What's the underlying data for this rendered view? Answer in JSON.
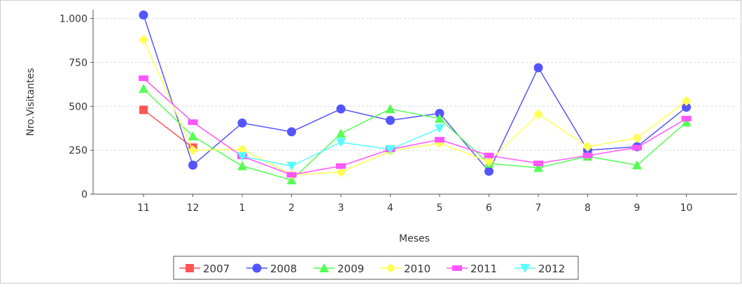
{
  "chart_data": {
    "type": "line",
    "xlabel": "Meses",
    "ylabel": "Nro.Visitantes",
    "categories": [
      "11",
      "12",
      "1",
      "2",
      "3",
      "4",
      "5",
      "6",
      "7",
      "8",
      "9",
      "10"
    ],
    "ylim": [
      0,
      1050
    ],
    "yticks": [
      0,
      250,
      500,
      750,
      1000
    ],
    "ytick_labels": [
      "0",
      "250",
      "500",
      "750",
      "1.000"
    ],
    "grid": "horizontal-dashed",
    "legend_position": "bottom",
    "series": [
      {
        "name": "2007",
        "color": "#ff5555",
        "marker": "square",
        "values": [
          480,
          265,
          null,
          null,
          null,
          null,
          null,
          null,
          null,
          null,
          null,
          null
        ]
      },
      {
        "name": "2008",
        "color": "#5555ff",
        "marker": "circle",
        "values": [
          1020,
          165,
          405,
          355,
          485,
          420,
          460,
          130,
          720,
          250,
          270,
          495
        ]
      },
      {
        "name": "2009",
        "color": "#55ff55",
        "marker": "triangle-up",
        "values": [
          600,
          330,
          160,
          80,
          345,
          485,
          430,
          175,
          150,
          215,
          165,
          410
        ]
      },
      {
        "name": "2010",
        "color": "#ffff55",
        "marker": "diamond",
        "values": [
          880,
          250,
          255,
          110,
          125,
          245,
          290,
          185,
          455,
          270,
          320,
          530
        ]
      },
      {
        "name": "2011",
        "color": "#ff55ff",
        "marker": "rect",
        "values": [
          660,
          410,
          215,
          110,
          160,
          255,
          310,
          220,
          175,
          220,
          265,
          430
        ]
      },
      {
        "name": "2012",
        "color": "#55ffff",
        "marker": "triangle-down",
        "values": [
          null,
          null,
          215,
          160,
          295,
          255,
          375,
          null,
          null,
          null,
          null,
          null
        ]
      }
    ]
  }
}
